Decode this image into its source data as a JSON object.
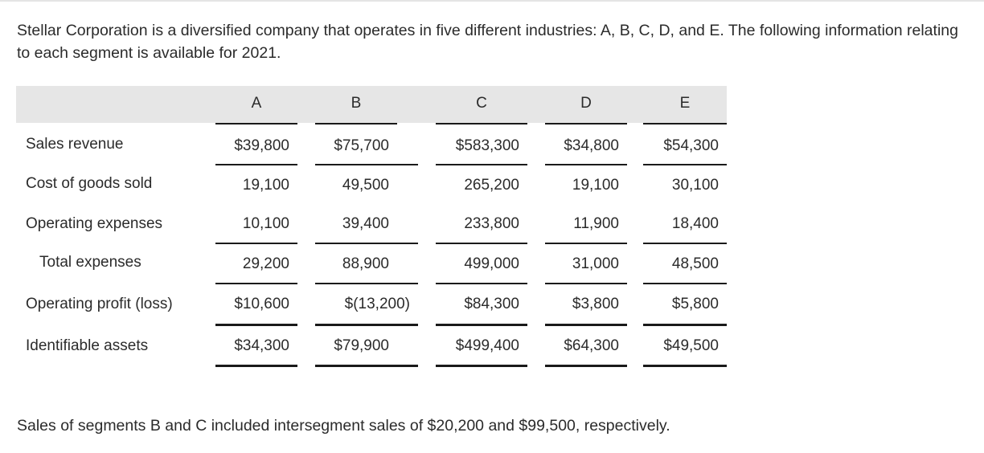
{
  "intro_text": "Stellar Corporation is a diversified company that operates in five different industries: A, B, C, D, and E. The following information relating to each segment is available for 2021.",
  "table": {
    "columns": [
      "A",
      "B",
      "C",
      "D",
      "E"
    ],
    "rows": [
      {
        "label": "Sales revenue",
        "values": [
          "$39,800",
          "$75,700",
          "$583,300",
          "$34,800",
          "$54,300"
        ]
      },
      {
        "label": "Cost of goods sold",
        "values": [
          "19,100",
          "49,500",
          "265,200",
          "19,100",
          "30,100"
        ]
      },
      {
        "label": "Operating expenses",
        "values": [
          "10,100",
          "39,400",
          "233,800",
          "11,900",
          "18,400"
        ]
      },
      {
        "label": "Total expenses",
        "values": [
          "29,200",
          "88,900",
          "499,000",
          "31,000",
          "48,500"
        ]
      },
      {
        "label": "Operating profit (loss)",
        "values": [
          "$10,600",
          "$(13,200)",
          "$84,300",
          "$3,800",
          "$5,800"
        ]
      },
      {
        "label": "Identifiable assets",
        "values": [
          "$34,300",
          "$79,900",
          "$499,400",
          "$64,300",
          "$49,500"
        ]
      }
    ]
  },
  "footnote_text": "Sales of segments B and C included intersegment sales of $20,200 and $99,500, respectively."
}
